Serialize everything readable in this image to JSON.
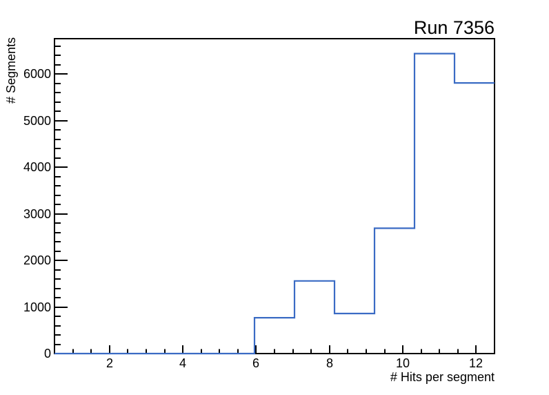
{
  "window": {
    "background_color": "#ffffff"
  },
  "chart_data": {
    "type": "histogram-step",
    "title": "Run 7356",
    "xlabel": "# Hits per segment",
    "ylabel": "# Segments",
    "xlim": [
      0.5,
      12.5
    ],
    "ylim": [
      0,
      6760
    ],
    "bin_edges": [
      0.5,
      1.591,
      2.682,
      3.773,
      4.864,
      5.955,
      7.045,
      8.136,
      9.227,
      10.318,
      11.409,
      12.5
    ],
    "counts": [
      0,
      0,
      0,
      0,
      0,
      770,
      1560,
      860,
      2690,
      6440,
      5810
    ],
    "x_major_ticks": [
      2,
      4,
      6,
      8,
      10,
      12
    ],
    "x_major_tick_labels": [
      "2",
      "4",
      "6",
      "8",
      "10",
      "12"
    ],
    "x_minor_tick_step": 0.5,
    "y_major_ticks": [
      0,
      1000,
      2000,
      3000,
      4000,
      5000,
      6000
    ],
    "y_major_tick_labels": [
      "0",
      "1000",
      "2000",
      "3000",
      "4000",
      "5000",
      "6000"
    ],
    "y_minor_tick_step": 200,
    "line_color": "#3a6bc4",
    "axis_color": "#000000",
    "grid": false,
    "legend_position": "none"
  }
}
